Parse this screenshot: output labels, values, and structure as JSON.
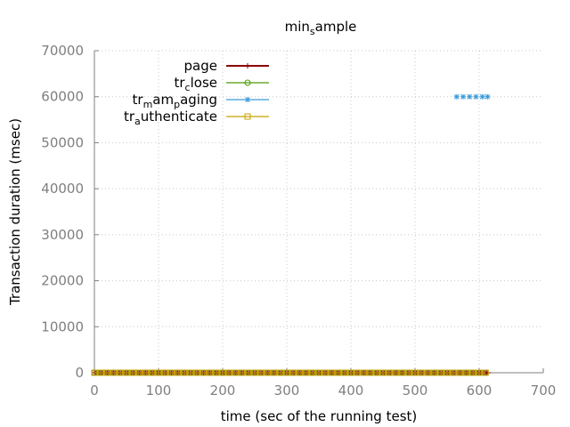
{
  "chart_data": {
    "type": "line",
    "title": {
      "main": "min",
      "sub": "s",
      "rest": "ample"
    },
    "xlabel": "time (sec of the running test)",
    "ylabel": "Transaction duration (msec)",
    "xlim": [
      0,
      700
    ],
    "ylim": [
      0,
      70000
    ],
    "xticks": [
      0,
      100,
      200,
      300,
      400,
      500,
      600,
      700
    ],
    "yticks": [
      0,
      10000,
      20000,
      30000,
      40000,
      50000,
      60000,
      70000
    ],
    "grid": true,
    "legend_position": "top-left",
    "series": [
      {
        "key": "page",
        "label": {
          "main": "page",
          "sub": "",
          "rest": ""
        },
        "color": "#8b0000",
        "marker": "plus",
        "range": [
          0,
          615
        ],
        "step": 2,
        "y": 0
      },
      {
        "key": "trclose",
        "label": {
          "main": "tr",
          "sub": "c",
          "rest": "lose"
        },
        "color": "#4e9a06",
        "marker": "circle",
        "range": [
          0,
          615
        ],
        "step": 10,
        "y": 0
      },
      {
        "key": "trmampaging",
        "label": {
          "main": "tr",
          "sub": "m",
          "rest": "am",
          "sub2": "p",
          "rest2": "aging"
        },
        "color": "#3b9bd9",
        "marker": "star",
        "points": [
          [
            565,
            60000
          ],
          [
            575,
            60000
          ],
          [
            585,
            60000
          ],
          [
            595,
            60000
          ],
          [
            605,
            60000
          ],
          [
            613,
            60000
          ]
        ]
      },
      {
        "key": "trauthenticate",
        "label": {
          "main": "tr",
          "sub": "a",
          "rest": "uthenticate"
        },
        "color": "#c8a000",
        "marker": "square",
        "range": [
          0,
          615
        ],
        "step": 10,
        "y": 0
      }
    ]
  }
}
